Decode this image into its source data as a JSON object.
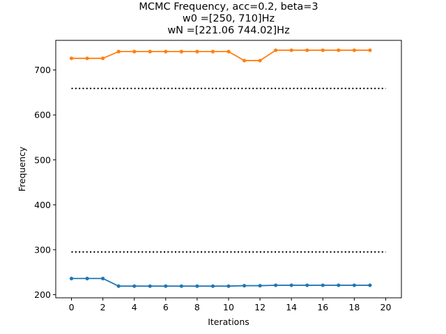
{
  "chart_data": {
    "type": "line",
    "title_lines": [
      "MCMC Frequency, acc=0.2, beta=3",
      "w0 =[250, 710]Hz",
      "wN =[221.06 744.02]Hz"
    ],
    "xlabel": "Iterations",
    "ylabel": "Frequency",
    "xlim": [
      -1,
      21
    ],
    "ylim": [
      193,
      766
    ],
    "xticks": [
      0,
      2,
      4,
      6,
      8,
      10,
      12,
      14,
      16,
      18,
      20
    ],
    "yticks": [
      200,
      300,
      400,
      500,
      600,
      700
    ],
    "grid": false,
    "x": [
      0,
      1,
      2,
      3,
      4,
      5,
      6,
      7,
      8,
      9,
      10,
      11,
      12,
      13,
      14,
      15,
      16,
      17,
      18,
      19
    ],
    "series": [
      {
        "color": "#1f77b4",
        "marker": "circle",
        "values": [
          236,
          236,
          236,
          219,
          219,
          219,
          219,
          219,
          219,
          219,
          219,
          220,
          220,
          221,
          221,
          221,
          221,
          221,
          221,
          221
        ]
      },
      {
        "color": "#ff7f0e",
        "marker": "circle",
        "values": [
          726,
          726,
          726,
          741,
          741,
          741,
          741,
          741,
          741,
          741,
          741,
          721,
          721,
          744,
          744,
          744,
          744,
          744,
          744,
          744
        ]
      }
    ],
    "reference_lines": [
      {
        "y": 295,
        "x_range": [
          0,
          20
        ],
        "style": "dotted",
        "color": "#000000"
      },
      {
        "y": 659,
        "x_range": [
          0,
          20
        ],
        "style": "dotted",
        "color": "#000000"
      }
    ]
  }
}
